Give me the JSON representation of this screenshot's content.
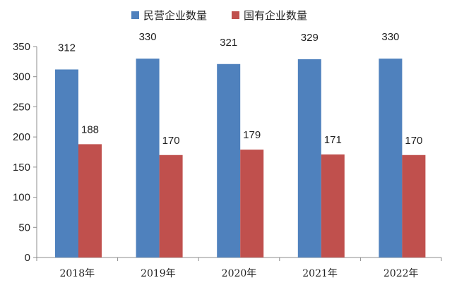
{
  "chart_data": {
    "type": "bar",
    "categories": [
      "2018年",
      "2019年",
      "2020年",
      "2021年",
      "2022年"
    ],
    "series": [
      {
        "name": "民营企业数量",
        "values": [
          312,
          330,
          321,
          329,
          330
        ],
        "color": "#4F81BD"
      },
      {
        "name": "国有企业数量",
        "values": [
          188,
          170,
          179,
          171,
          170
        ],
        "color": "#C0504D"
      }
    ],
    "ylim": [
      0,
      350
    ],
    "yticks": [
      0,
      50,
      100,
      150,
      200,
      250,
      300,
      350
    ],
    "legend_position": "top",
    "grid": false,
    "title": "",
    "xlabel": "",
    "ylabel": ""
  }
}
